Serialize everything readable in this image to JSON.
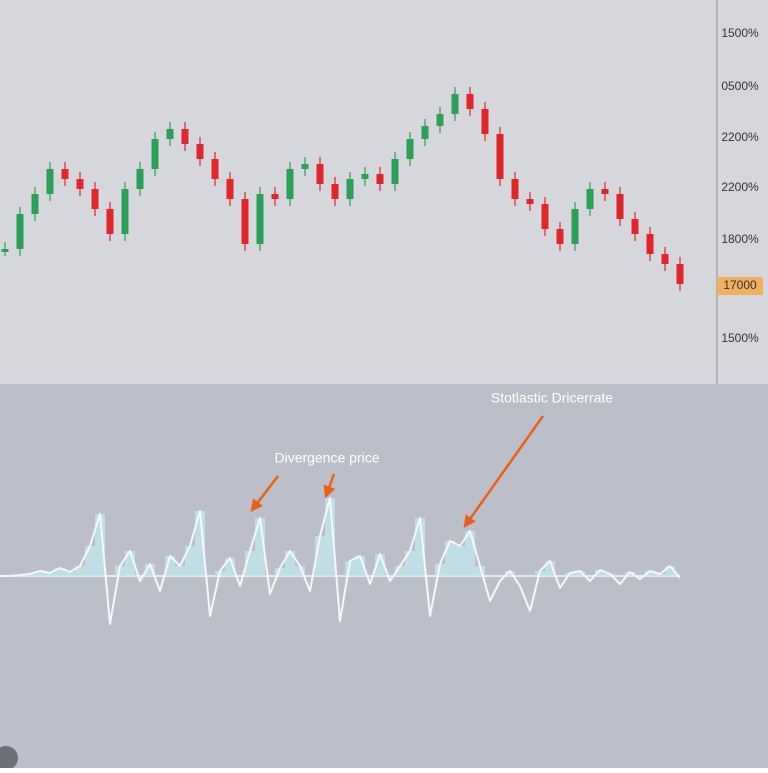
{
  "chart_data": [
    {
      "type": "candlestick",
      "axis_labels": [
        "1500%",
        "0500%",
        "2200%",
        "2200%",
        "1800%",
        "1500%"
      ],
      "current_price_label": "17000",
      "up_color": "#2e9e5b",
      "down_color": "#e0262b",
      "ylim": [
        0,
        384
      ],
      "close": [
        135,
        170,
        190,
        215,
        205,
        195,
        175,
        150,
        195,
        215,
        245,
        255,
        240,
        225,
        205,
        185,
        140,
        190,
        185,
        215,
        220,
        200,
        185,
        205,
        210,
        200,
        225,
        245,
        258,
        270,
        290,
        275,
        250,
        205,
        185,
        180,
        155,
        140,
        175,
        195,
        190,
        165,
        150,
        130,
        120,
        100
      ]
    },
    {
      "type": "oscillator",
      "line_color": "#f4f8fb",
      "fill_color": "#bfe6ee",
      "ylim": [
        -192,
        192
      ],
      "values": [
        0,
        0,
        1,
        2,
        5,
        3,
        8,
        4,
        10,
        30,
        62,
        -48,
        10,
        25,
        -5,
        12,
        -15,
        20,
        10,
        30,
        65,
        -40,
        5,
        18,
        -10,
        25,
        58,
        -18,
        8,
        25,
        10,
        -15,
        40,
        78,
        -45,
        15,
        20,
        -8,
        22,
        -5,
        10,
        25,
        58,
        -40,
        12,
        35,
        30,
        45,
        10,
        -25,
        -5,
        5,
        -10,
        -35,
        5,
        15,
        -12,
        3,
        5,
        -5,
        6,
        2,
        -8,
        4,
        -3,
        5,
        2,
        10,
        -2
      ],
      "annotations": [
        "Divergence price",
        "Stotlastic Dricerrate"
      ]
    }
  ]
}
